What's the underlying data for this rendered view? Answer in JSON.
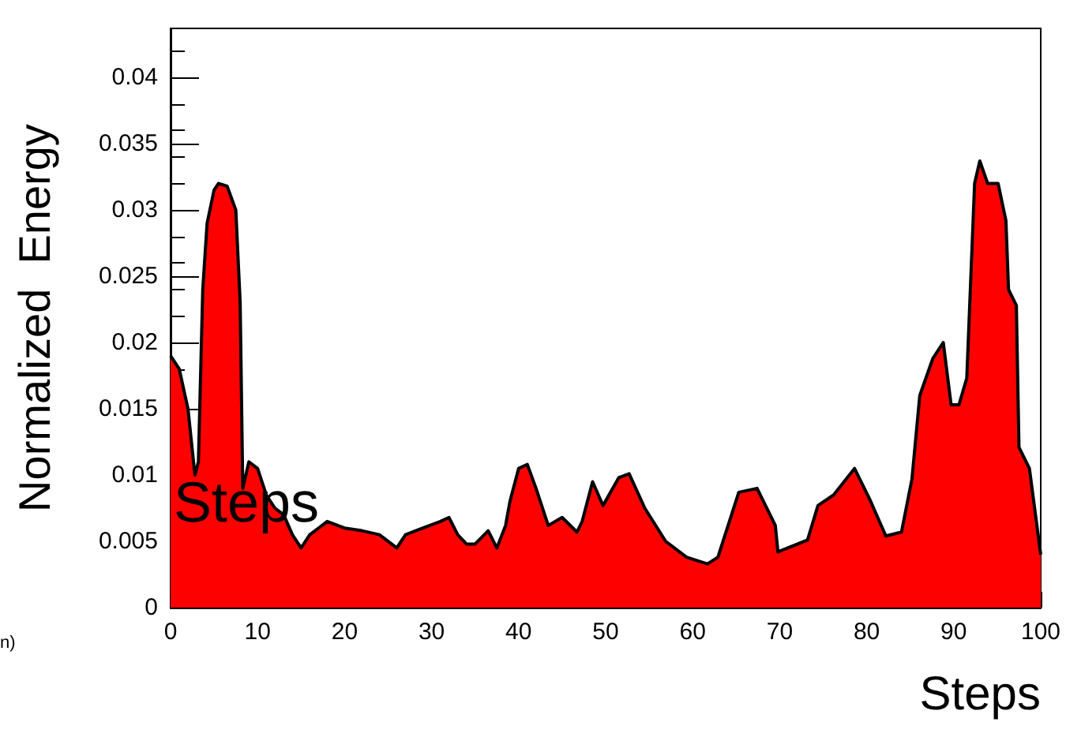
{
  "chart_data": {
    "type": "area",
    "xlabel": "Steps",
    "ylabel": "Normalized  Energy",
    "annotations": [
      "Steps",
      "n)"
    ],
    "xlim": [
      0,
      100
    ],
    "xticks": [
      0,
      10,
      20,
      30,
      40,
      50,
      60,
      70,
      80,
      90,
      100
    ],
    "ylim": [
      0,
      0.0437
    ],
    "yticks": [
      0,
      0.005,
      0.01,
      0.015,
      0.02,
      0.025,
      0.03,
      0.035,
      0.04
    ],
    "grid": false,
    "marker": "none",
    "series": [
      {
        "color": "#ff0000",
        "x": [
          0,
          1,
          2,
          2.8,
          3.2,
          3.7,
          4.2,
          5,
          5.5,
          6.5,
          7.5,
          8,
          8.3,
          9,
          10,
          11,
          12,
          13,
          14,
          15,
          16,
          17,
          18,
          20,
          22,
          24,
          26,
          27,
          29,
          31,
          32,
          33,
          34,
          35,
          36.5,
          37.5,
          38.5,
          39,
          40,
          41,
          42,
          43.4,
          45,
          46.7,
          47.3,
          48.5,
          49.7,
          51.5,
          52.7,
          54.5,
          56.9,
          59.3,
          61.7,
          62.9,
          65.3,
          67.4,
          69.5,
          69.8,
          73.2,
          74.4,
          76.2,
          78.6,
          80.4,
          82.2,
          84,
          85.2,
          86.1,
          87.6,
          88.8,
          89.7,
          90.6,
          91.5,
          92.4,
          93,
          93.9,
          95.1,
          96,
          96.3,
          97.2,
          97.5,
          98.7,
          99.9,
          100
        ],
        "values": [
          0.019,
          0.018,
          0.015,
          0.01,
          0.011,
          0.024,
          0.029,
          0.0315,
          0.032,
          0.0318,
          0.03,
          0.023,
          0.009,
          0.011,
          0.0105,
          0.0085,
          0.0075,
          0.007,
          0.0055,
          0.0045,
          0.0055,
          0.006,
          0.0065,
          0.006,
          0.0058,
          0.0055,
          0.0045,
          0.0055,
          0.006,
          0.0065,
          0.0068,
          0.0055,
          0.0048,
          0.0048,
          0.0058,
          0.0045,
          0.0062,
          0.008,
          0.0105,
          0.0108,
          0.009,
          0.0062,
          0.0068,
          0.0057,
          0.0065,
          0.0095,
          0.0077,
          0.0098,
          0.0101,
          0.0075,
          0.005,
          0.0038,
          0.0033,
          0.0038,
          0.0087,
          0.009,
          0.0062,
          0.0042,
          0.0051,
          0.0077,
          0.0085,
          0.0105,
          0.0081,
          0.0054,
          0.0057,
          0.0097,
          0.016,
          0.0188,
          0.02,
          0.0153,
          0.0153,
          0.0173,
          0.032,
          0.0337,
          0.032,
          0.032,
          0.0292,
          0.024,
          0.0228,
          0.0121,
          0.0105,
          0.0045,
          0.004
        ]
      }
    ]
  }
}
